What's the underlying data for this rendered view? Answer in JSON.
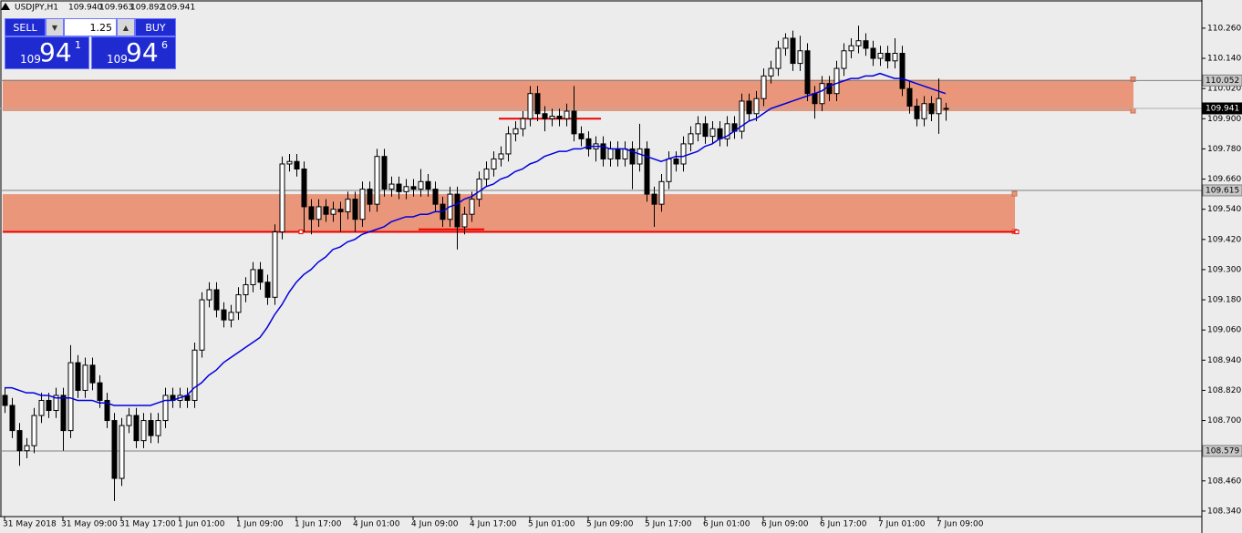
{
  "chart_data": {
    "type": "candlestick",
    "symbol": "USDJPY,H1",
    "header_values": [
      "109.940",
      "109.963",
      "109.892",
      "109.941"
    ],
    "panel": {
      "sell": "SELL",
      "buy": "BUY",
      "lot": "1.25",
      "bid": [
        "109",
        "94",
        "1"
      ],
      "ask": [
        "109",
        "94",
        "6"
      ]
    },
    "categories": [
      "31 May 2018",
      null,
      null,
      null,
      null,
      null,
      null,
      null,
      "31 May 09:00",
      null,
      null,
      null,
      null,
      null,
      null,
      null,
      "31 May 17:00",
      null,
      null,
      null,
      null,
      null,
      null,
      null,
      "1 Jun 01:00",
      null,
      null,
      null,
      null,
      null,
      null,
      null,
      "1 Jun 09:00",
      null,
      null,
      null,
      null,
      null,
      null,
      null,
      "1 Jun 17:00",
      null,
      null,
      null,
      null,
      null,
      null,
      null,
      "4 Jun 01:00",
      null,
      null,
      null,
      null,
      null,
      null,
      null,
      "4 Jun 09:00",
      null,
      null,
      null,
      null,
      null,
      null,
      null,
      "4 Jun 17:00",
      null,
      null,
      null,
      null,
      null,
      null,
      null,
      "5 Jun 01:00",
      null,
      null,
      null,
      null,
      null,
      null,
      null,
      "5 Jun 09:00",
      null,
      null,
      null,
      null,
      null,
      null,
      null,
      "5 Jun 17:00",
      null,
      null,
      null,
      null,
      null,
      null,
      null,
      "6 Jun 01:00",
      null,
      null,
      null,
      null,
      null,
      null,
      null,
      "6 Jun 09:00",
      null,
      null,
      null,
      null,
      null,
      null,
      null,
      "6 Jun 17:00",
      null,
      null,
      null,
      null,
      null,
      null,
      null,
      "7 Jun 01:00",
      null,
      null,
      null,
      null,
      null,
      null,
      null,
      "7 Jun 09:00",
      null
    ],
    "ohlc": [
      [
        108.8,
        108.83,
        108.73,
        108.76
      ],
      [
        108.76,
        108.79,
        108.63,
        108.66
      ],
      [
        108.66,
        108.69,
        108.52,
        108.58
      ],
      [
        108.58,
        108.63,
        108.55,
        108.6
      ],
      [
        108.6,
        108.75,
        108.57,
        108.72
      ],
      [
        108.72,
        108.81,
        108.69,
        108.78
      ],
      [
        108.78,
        108.81,
        108.71,
        108.74
      ],
      [
        108.74,
        108.83,
        108.71,
        108.8
      ],
      [
        108.8,
        108.83,
        108.58,
        108.66
      ],
      [
        108.66,
        109.0,
        108.63,
        108.93
      ],
      [
        108.93,
        108.96,
        108.79,
        108.82
      ],
      [
        108.82,
        108.95,
        108.79,
        108.92
      ],
      [
        108.92,
        108.95,
        108.82,
        108.85
      ],
      [
        108.85,
        108.88,
        108.75,
        108.78
      ],
      [
        108.78,
        108.81,
        108.67,
        108.7
      ],
      [
        108.7,
        108.73,
        108.38,
        108.47
      ],
      [
        108.47,
        108.71,
        108.44,
        108.68
      ],
      [
        108.68,
        108.75,
        108.65,
        108.72
      ],
      [
        108.72,
        108.75,
        108.59,
        108.62
      ],
      [
        108.62,
        108.73,
        108.59,
        108.7
      ],
      [
        108.7,
        108.73,
        108.61,
        108.64
      ],
      [
        108.64,
        108.73,
        108.61,
        108.7
      ],
      [
        108.7,
        108.83,
        108.67,
        108.8
      ],
      [
        108.8,
        108.83,
        108.75,
        108.78
      ],
      [
        108.78,
        108.83,
        108.75,
        108.8
      ],
      [
        108.8,
        108.83,
        108.75,
        108.78
      ],
      [
        108.78,
        109.01,
        108.75,
        108.98
      ],
      [
        108.98,
        109.21,
        108.95,
        109.18
      ],
      [
        109.18,
        109.25,
        109.15,
        109.22
      ],
      [
        109.22,
        109.25,
        109.11,
        109.14
      ],
      [
        109.14,
        109.17,
        109.07,
        109.1
      ],
      [
        109.1,
        109.16,
        109.07,
        109.13
      ],
      [
        109.13,
        109.23,
        109.1,
        109.2
      ],
      [
        109.2,
        109.27,
        109.17,
        109.24
      ],
      [
        109.24,
        109.33,
        109.21,
        109.3
      ],
      [
        109.3,
        109.33,
        109.22,
        109.25
      ],
      [
        109.25,
        109.28,
        109.16,
        109.19
      ],
      [
        109.19,
        109.48,
        109.16,
        109.45
      ],
      [
        109.45,
        109.75,
        109.42,
        109.72
      ],
      [
        109.72,
        109.76,
        109.69,
        109.73
      ],
      [
        109.73,
        109.76,
        109.67,
        109.7
      ],
      [
        109.7,
        109.73,
        109.45,
        109.55
      ],
      [
        109.55,
        109.58,
        109.44,
        109.5
      ],
      [
        109.5,
        109.58,
        109.47,
        109.55
      ],
      [
        109.55,
        109.58,
        109.49,
        109.52
      ],
      [
        109.52,
        109.57,
        109.49,
        109.54
      ],
      [
        109.54,
        109.57,
        109.45,
        109.53
      ],
      [
        109.53,
        109.61,
        109.5,
        109.58
      ],
      [
        109.58,
        109.61,
        109.45,
        109.5
      ],
      [
        109.5,
        109.65,
        109.47,
        109.62
      ],
      [
        109.62,
        109.65,
        109.53,
        109.56
      ],
      [
        109.56,
        109.78,
        109.53,
        109.75
      ],
      [
        109.75,
        109.78,
        109.59,
        109.62
      ],
      [
        109.62,
        109.67,
        109.59,
        109.64
      ],
      [
        109.64,
        109.67,
        109.58,
        109.61
      ],
      [
        109.61,
        109.66,
        109.58,
        109.63
      ],
      [
        109.63,
        109.66,
        109.59,
        109.62
      ],
      [
        109.62,
        109.7,
        109.59,
        109.65
      ],
      [
        109.65,
        109.68,
        109.59,
        109.62
      ],
      [
        109.62,
        109.65,
        109.53,
        109.56
      ],
      [
        109.56,
        109.59,
        109.47,
        109.5
      ],
      [
        109.5,
        109.63,
        109.47,
        109.6
      ],
      [
        109.6,
        109.63,
        109.38,
        109.47
      ],
      [
        109.47,
        109.55,
        109.44,
        109.52
      ],
      [
        109.52,
        109.61,
        109.49,
        109.58
      ],
      [
        109.58,
        109.69,
        109.55,
        109.66
      ],
      [
        109.66,
        109.73,
        109.63,
        109.7
      ],
      [
        109.7,
        109.77,
        109.67,
        109.74
      ],
      [
        109.74,
        109.79,
        109.71,
        109.76
      ],
      [
        109.76,
        109.87,
        109.73,
        109.84
      ],
      [
        109.84,
        109.89,
        109.81,
        109.86
      ],
      [
        109.86,
        109.93,
        109.83,
        109.9
      ],
      [
        109.9,
        110.03,
        109.87,
        110.0
      ],
      [
        110.0,
        110.03,
        109.89,
        109.92
      ],
      [
        109.92,
        109.95,
        109.85,
        109.9
      ],
      [
        109.9,
        109.94,
        109.87,
        109.91
      ],
      [
        109.91,
        109.94,
        109.87,
        109.9
      ],
      [
        109.9,
        109.96,
        109.87,
        109.93
      ],
      [
        109.93,
        110.03,
        109.81,
        109.84
      ],
      [
        109.84,
        109.87,
        109.79,
        109.82
      ],
      [
        109.82,
        109.85,
        109.75,
        109.78
      ],
      [
        109.78,
        109.83,
        109.73,
        109.8
      ],
      [
        109.8,
        109.83,
        109.71,
        109.74
      ],
      [
        109.74,
        109.81,
        109.71,
        109.78
      ],
      [
        109.78,
        109.81,
        109.71,
        109.74
      ],
      [
        109.74,
        109.81,
        109.71,
        109.78
      ],
      [
        109.78,
        109.81,
        109.62,
        109.72
      ],
      [
        109.72,
        109.88,
        109.69,
        109.78
      ],
      [
        109.78,
        109.81,
        109.57,
        109.6
      ],
      [
        109.6,
        109.63,
        109.47,
        109.56
      ],
      [
        109.56,
        109.68,
        109.53,
        109.65
      ],
      [
        109.65,
        109.77,
        109.62,
        109.74
      ],
      [
        109.74,
        109.77,
        109.69,
        109.72
      ],
      [
        109.72,
        109.83,
        109.69,
        109.8
      ],
      [
        109.8,
        109.87,
        109.77,
        109.84
      ],
      [
        109.84,
        109.91,
        109.81,
        109.88
      ],
      [
        109.88,
        109.91,
        109.8,
        109.83
      ],
      [
        109.83,
        109.89,
        109.8,
        109.86
      ],
      [
        109.86,
        109.89,
        109.79,
        109.82
      ],
      [
        109.82,
        109.91,
        109.79,
        109.88
      ],
      [
        109.88,
        109.91,
        109.82,
        109.85
      ],
      [
        109.85,
        110.0,
        109.82,
        109.97
      ],
      [
        109.97,
        110.0,
        109.89,
        109.92
      ],
      [
        109.92,
        110.01,
        109.89,
        109.98
      ],
      [
        109.98,
        110.1,
        109.95,
        110.07
      ],
      [
        110.07,
        110.13,
        110.04,
        110.1
      ],
      [
        110.1,
        110.21,
        110.07,
        110.18
      ],
      [
        110.18,
        110.24,
        110.15,
        110.22
      ],
      [
        110.22,
        110.25,
        110.09,
        110.12
      ],
      [
        110.12,
        110.23,
        110.09,
        110.17
      ],
      [
        110.17,
        110.2,
        109.97,
        110.0
      ],
      [
        110.0,
        110.03,
        109.9,
        109.96
      ],
      [
        109.96,
        110.07,
        109.93,
        110.04
      ],
      [
        110.04,
        110.07,
        109.97,
        110.0
      ],
      [
        110.0,
        110.13,
        109.97,
        110.1
      ],
      [
        110.1,
        110.2,
        110.07,
        110.17
      ],
      [
        110.17,
        110.22,
        110.14,
        110.19
      ],
      [
        110.19,
        110.27,
        110.16,
        110.21
      ],
      [
        110.21,
        110.24,
        110.15,
        110.18
      ],
      [
        110.18,
        110.21,
        110.11,
        110.14
      ],
      [
        110.14,
        110.19,
        110.11,
        110.16
      ],
      [
        110.16,
        110.19,
        110.1,
        110.13
      ],
      [
        110.13,
        110.22,
        110.1,
        110.16
      ],
      [
        110.16,
        110.19,
        109.99,
        110.02
      ],
      [
        110.02,
        110.05,
        109.92,
        109.95
      ],
      [
        109.95,
        109.98,
        109.87,
        109.9
      ],
      [
        109.9,
        109.99,
        109.87,
        109.96
      ],
      [
        109.96,
        109.99,
        109.89,
        109.92
      ],
      [
        109.92,
        110.06,
        109.84,
        109.98
      ],
      [
        109.94,
        109.963,
        109.892,
        109.941
      ]
    ],
    "bull_color": "#ffffff",
    "bear_color": "#000000",
    "ma": {
      "color": "#0000dd",
      "values": [
        108.83,
        108.83,
        108.82,
        108.81,
        108.81,
        108.8,
        108.8,
        108.79,
        108.79,
        108.79,
        108.78,
        108.78,
        108.78,
        108.77,
        108.77,
        108.76,
        108.76,
        108.76,
        108.76,
        108.76,
        108.76,
        108.77,
        108.78,
        108.78,
        108.79,
        108.8,
        108.83,
        108.85,
        108.88,
        108.9,
        108.93,
        108.95,
        108.97,
        108.99,
        109.01,
        109.03,
        109.07,
        109.12,
        109.16,
        109.21,
        109.25,
        109.28,
        109.3,
        109.33,
        109.35,
        109.38,
        109.39,
        109.41,
        109.42,
        109.44,
        109.45,
        109.46,
        109.47,
        109.49,
        109.5,
        109.51,
        109.51,
        109.52,
        109.52,
        109.53,
        109.53,
        109.55,
        109.56,
        109.58,
        109.59,
        109.61,
        109.63,
        109.64,
        109.66,
        109.67,
        109.69,
        109.7,
        109.72,
        109.73,
        109.75,
        109.76,
        109.77,
        109.77,
        109.78,
        109.78,
        109.79,
        109.79,
        109.79,
        109.78,
        109.78,
        109.78,
        109.77,
        109.76,
        109.75,
        109.74,
        109.73,
        109.74,
        109.75,
        109.75,
        109.76,
        109.77,
        109.79,
        109.8,
        109.82,
        109.83,
        109.85,
        109.87,
        109.89,
        109.9,
        109.92,
        109.94,
        109.95,
        109.96,
        109.97,
        109.98,
        109.99,
        110.0,
        110.01,
        110.03,
        110.04,
        110.05,
        110.06,
        110.06,
        110.07,
        110.07,
        110.08,
        110.07,
        110.06,
        110.06,
        110.05,
        110.04,
        110.03,
        110.02,
        110.01,
        110.0
      ]
    },
    "ylim": [
      108.318,
      110.372
    ],
    "yticks": [
      {
        "value": 110.26,
        "label": "110.260"
      },
      {
        "value": 110.14,
        "label": "110.140"
      },
      {
        "value": 110.02,
        "label": "110.020"
      },
      {
        "value": 109.9,
        "label": "109.900"
      },
      {
        "value": 109.78,
        "label": "109.780"
      },
      {
        "value": 109.66,
        "label": "109.660"
      },
      {
        "value": 109.54,
        "label": "109.540"
      },
      {
        "value": 109.42,
        "label": "109.420"
      },
      {
        "value": 109.3,
        "label": "109.300"
      },
      {
        "value": 109.18,
        "label": "109.180"
      },
      {
        "value": 109.06,
        "label": "109.060"
      },
      {
        "value": 108.94,
        "label": "108.940"
      },
      {
        "value": 108.82,
        "label": "108.820"
      },
      {
        "value": 108.7,
        "label": "108.700"
      },
      {
        "value": 108.58,
        "label": "108.580"
      },
      {
        "value": 108.46,
        "label": "108.460"
      },
      {
        "value": 108.34,
        "label": "108.340"
      }
    ],
    "levels": [
      {
        "value": 110.052,
        "label": "110.052",
        "color": "#808080"
      },
      {
        "value": 109.941,
        "label": "109.941",
        "color": "#000000"
      },
      {
        "value": 109.615,
        "label": "109.615",
        "color": "#808080"
      },
      {
        "value": 108.579,
        "label": "108.579",
        "color": "#808080"
      }
    ],
    "zones": [
      {
        "low": 109.93,
        "high": 110.055,
        "color": "#e9967a"
      },
      {
        "low": 109.45,
        "high": 109.6,
        "color": "#e9967a"
      }
    ],
    "red_lines": [
      {
        "value": 109.45,
        "color": "#ee0000"
      },
      {
        "value": 109.9,
        "color": "#ee0000"
      },
      {
        "value": 109.46,
        "color": "#ee0000"
      }
    ]
  }
}
